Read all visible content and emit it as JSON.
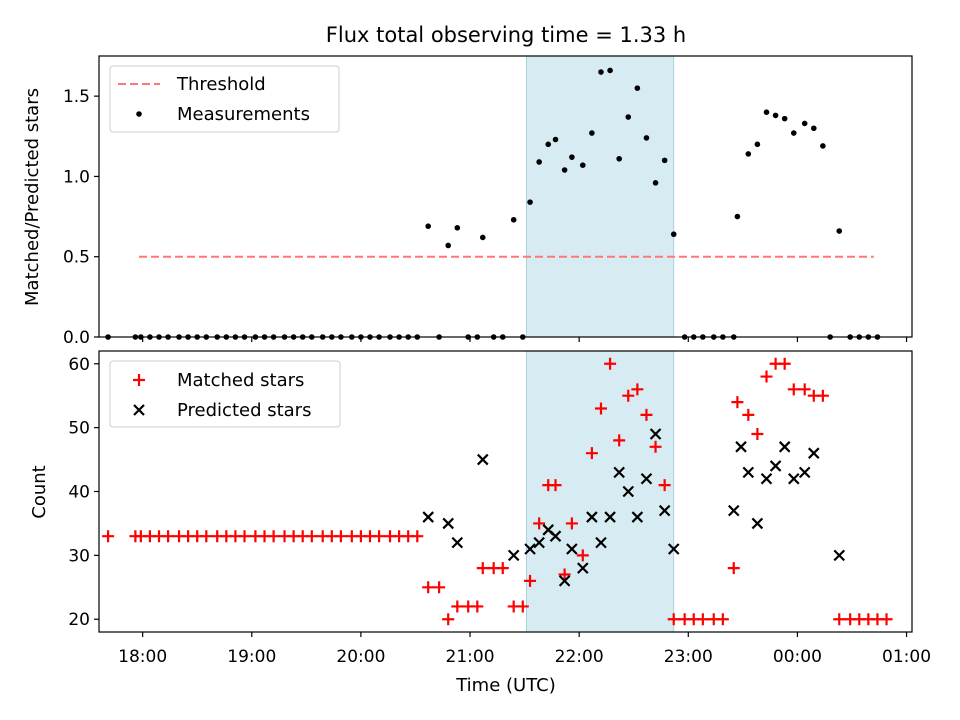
{
  "title": "Flux total observing time = 1.33 h",
  "chart_data": [
    {
      "type": "scatter",
      "panel": "top",
      "ylabel": "Matched/Predicted stars",
      "ylim": [
        0,
        1.75
      ],
      "xlim": [
        "17:36",
        "01:03"
      ],
      "yticks": [
        0.0,
        0.5,
        1.0,
        1.5
      ],
      "ytick_labels": [
        "0.0",
        "0.5",
        "1.0",
        "1.5"
      ],
      "grid": false,
      "legend_position": "upper left",
      "shaded_interval": [
        "21:31",
        "22:52"
      ],
      "threshold": {
        "name": "Threshold",
        "value": 0.5,
        "from": "17:58",
        "to": "00:42",
        "color": "#ff7777",
        "style": "dashed"
      },
      "series": [
        {
          "name": "Measurements",
          "color": "#000000",
          "marker": "dot",
          "points": [
            [
              "17:41",
              0
            ],
            [
              "17:56",
              0
            ],
            [
              "17:59",
              0
            ],
            [
              "18:04",
              0
            ],
            [
              "18:09",
              0
            ],
            [
              "18:14",
              0
            ],
            [
              "18:20",
              0
            ],
            [
              "18:25",
              0
            ],
            [
              "18:30",
              0
            ],
            [
              "18:35",
              0
            ],
            [
              "18:41",
              0
            ],
            [
              "18:46",
              0
            ],
            [
              "18:51",
              0
            ],
            [
              "18:56",
              0
            ],
            [
              "19:02",
              0
            ],
            [
              "19:07",
              0
            ],
            [
              "19:12",
              0
            ],
            [
              "19:18",
              0
            ],
            [
              "19:23",
              0
            ],
            [
              "19:28",
              0
            ],
            [
              "19:33",
              0
            ],
            [
              "19:39",
              0
            ],
            [
              "19:44",
              0
            ],
            [
              "19:49",
              0
            ],
            [
              "19:55",
              0
            ],
            [
              "20:00",
              0
            ],
            [
              "20:05",
              0
            ],
            [
              "20:10",
              0
            ],
            [
              "20:16",
              0
            ],
            [
              "20:21",
              0
            ],
            [
              "20:26",
              0
            ],
            [
              "20:31",
              0
            ],
            [
              "20:37",
              0.69
            ],
            [
              "20:43",
              0
            ],
            [
              "20:48",
              0.57
            ],
            [
              "20:53",
              0.68
            ],
            [
              "20:59",
              0
            ],
            [
              "21:04",
              0
            ],
            [
              "21:07",
              0.62
            ],
            [
              "21:13",
              0
            ],
            [
              "21:18",
              0
            ],
            [
              "21:24",
              0.73
            ],
            [
              "21:29",
              0
            ],
            [
              "21:33",
              0.84
            ],
            [
              "21:38",
              1.09
            ],
            [
              "21:43",
              1.2
            ],
            [
              "21:47",
              1.23
            ],
            [
              "21:52",
              1.04
            ],
            [
              "21:56",
              1.12
            ],
            [
              "22:02",
              1.07
            ],
            [
              "22:07",
              1.27
            ],
            [
              "22:12",
              1.65
            ],
            [
              "22:17",
              1.66
            ],
            [
              "22:22",
              1.11
            ],
            [
              "22:27",
              1.37
            ],
            [
              "22:32",
              1.55
            ],
            [
              "22:37",
              1.24
            ],
            [
              "22:42",
              0.96
            ],
            [
              "22:47",
              1.1
            ],
            [
              "22:52",
              0.64
            ],
            [
              "22:58",
              0
            ],
            [
              "23:03",
              0
            ],
            [
              "23:08",
              0
            ],
            [
              "23:14",
              0
            ],
            [
              "23:19",
              0
            ],
            [
              "23:25",
              0
            ],
            [
              "23:27",
              0.75
            ],
            [
              "23:33",
              1.14
            ],
            [
              "23:38",
              1.2
            ],
            [
              "23:43",
              1.4
            ],
            [
              "23:48",
              1.38
            ],
            [
              "23:53",
              1.36
            ],
            [
              "23:58",
              1.27
            ],
            [
              "00:04",
              1.33
            ],
            [
              "00:09",
              1.3
            ],
            [
              "00:14",
              1.19
            ],
            [
              "00:18",
              0
            ],
            [
              "00:23",
              0.66
            ],
            [
              "00:29",
              0
            ],
            [
              "00:34",
              0
            ],
            [
              "00:39",
              0
            ],
            [
              "00:44",
              0
            ]
          ]
        }
      ]
    },
    {
      "type": "scatter",
      "panel": "bottom",
      "xlabel": "Time (UTC)",
      "ylabel": "Count",
      "ylim": [
        18,
        62
      ],
      "xlim": [
        "17:36",
        "01:03"
      ],
      "yticks": [
        20,
        30,
        40,
        50,
        60
      ],
      "ytick_labels": [
        "20",
        "30",
        "40",
        "50",
        "60"
      ],
      "xticks": [
        "18:00",
        "19:00",
        "20:00",
        "21:00",
        "22:00",
        "23:00",
        "00:00",
        "01:00"
      ],
      "xtick_labels": [
        "18:00",
        "19:00",
        "20:00",
        "21:00",
        "22:00",
        "23:00",
        "00:00",
        "01:00"
      ],
      "grid": false,
      "legend_position": "upper left",
      "shaded_interval": [
        "21:31",
        "22:52"
      ],
      "series": [
        {
          "name": "Matched stars",
          "color": "#ff0000",
          "marker": "plus",
          "points": [
            [
              "17:41",
              33
            ],
            [
              "17:56",
              33
            ],
            [
              "17:59",
              33
            ],
            [
              "18:04",
              33
            ],
            [
              "18:09",
              33
            ],
            [
              "18:14",
              33
            ],
            [
              "18:20",
              33
            ],
            [
              "18:25",
              33
            ],
            [
              "18:30",
              33
            ],
            [
              "18:35",
              33
            ],
            [
              "18:41",
              33
            ],
            [
              "18:46",
              33
            ],
            [
              "18:51",
              33
            ],
            [
              "18:56",
              33
            ],
            [
              "19:02",
              33
            ],
            [
              "19:07",
              33
            ],
            [
              "19:12",
              33
            ],
            [
              "19:18",
              33
            ],
            [
              "19:23",
              33
            ],
            [
              "19:28",
              33
            ],
            [
              "19:33",
              33
            ],
            [
              "19:39",
              33
            ],
            [
              "19:44",
              33
            ],
            [
              "19:49",
              33
            ],
            [
              "19:55",
              33
            ],
            [
              "20:00",
              33
            ],
            [
              "20:05",
              33
            ],
            [
              "20:10",
              33
            ],
            [
              "20:16",
              33
            ],
            [
              "20:21",
              33
            ],
            [
              "20:26",
              33
            ],
            [
              "20:31",
              33
            ],
            [
              "20:37",
              25
            ],
            [
              "20:43",
              25
            ],
            [
              "20:48",
              20
            ],
            [
              "20:53",
              22
            ],
            [
              "20:59",
              22
            ],
            [
              "21:04",
              22
            ],
            [
              "21:07",
              28
            ],
            [
              "21:13",
              28
            ],
            [
              "21:18",
              28
            ],
            [
              "21:24",
              22
            ],
            [
              "21:29",
              22
            ],
            [
              "21:33",
              26
            ],
            [
              "21:38",
              35
            ],
            [
              "21:43",
              41
            ],
            [
              "21:47",
              41
            ],
            [
              "21:52",
              27
            ],
            [
              "21:56",
              35
            ],
            [
              "22:02",
              30
            ],
            [
              "22:07",
              46
            ],
            [
              "22:12",
              53
            ],
            [
              "22:17",
              60
            ],
            [
              "22:22",
              48
            ],
            [
              "22:27",
              55
            ],
            [
              "22:32",
              56
            ],
            [
              "22:37",
              52
            ],
            [
              "22:42",
              47
            ],
            [
              "22:47",
              41
            ],
            [
              "22:52",
              20
            ],
            [
              "22:58",
              20
            ],
            [
              "23:03",
              20
            ],
            [
              "23:08",
              20
            ],
            [
              "23:14",
              20
            ],
            [
              "23:19",
              20
            ],
            [
              "23:25",
              28
            ],
            [
              "23:27",
              54
            ],
            [
              "23:33",
              52
            ],
            [
              "23:38",
              49
            ],
            [
              "23:43",
              58
            ],
            [
              "23:48",
              60
            ],
            [
              "23:53",
              60
            ],
            [
              "23:58",
              56
            ],
            [
              "00:04",
              56
            ],
            [
              "00:09",
              55
            ],
            [
              "00:14",
              55
            ],
            [
              "00:23",
              20
            ],
            [
              "00:29",
              20
            ],
            [
              "00:34",
              20
            ],
            [
              "00:39",
              20
            ],
            [
              "00:44",
              20
            ],
            [
              "00:49",
              20
            ]
          ]
        },
        {
          "name": "Predicted stars",
          "color": "#000000",
          "marker": "x",
          "points": [
            [
              "20:37",
              36
            ],
            [
              "20:48",
              35
            ],
            [
              "20:53",
              32
            ],
            [
              "21:07",
              45
            ],
            [
              "21:24",
              30
            ],
            [
              "21:33",
              31
            ],
            [
              "21:38",
              32
            ],
            [
              "21:43",
              34
            ],
            [
              "21:47",
              33
            ],
            [
              "21:52",
              26
            ],
            [
              "21:56",
              31
            ],
            [
              "22:02",
              28
            ],
            [
              "22:07",
              36
            ],
            [
              "22:12",
              32
            ],
            [
              "22:17",
              36
            ],
            [
              "22:22",
              43
            ],
            [
              "22:27",
              40
            ],
            [
              "22:32",
              36
            ],
            [
              "22:37",
              42
            ],
            [
              "22:42",
              49
            ],
            [
              "22:47",
              37
            ],
            [
              "22:52",
              31
            ],
            [
              "23:25",
              37
            ],
            [
              "23:29",
              47
            ],
            [
              "23:33",
              43
            ],
            [
              "23:38",
              35
            ],
            [
              "23:43",
              42
            ],
            [
              "23:48",
              44
            ],
            [
              "23:53",
              47
            ],
            [
              "23:58",
              42
            ],
            [
              "00:04",
              43
            ],
            [
              "00:09",
              46
            ],
            [
              "00:23",
              30
            ]
          ]
        }
      ]
    }
  ]
}
